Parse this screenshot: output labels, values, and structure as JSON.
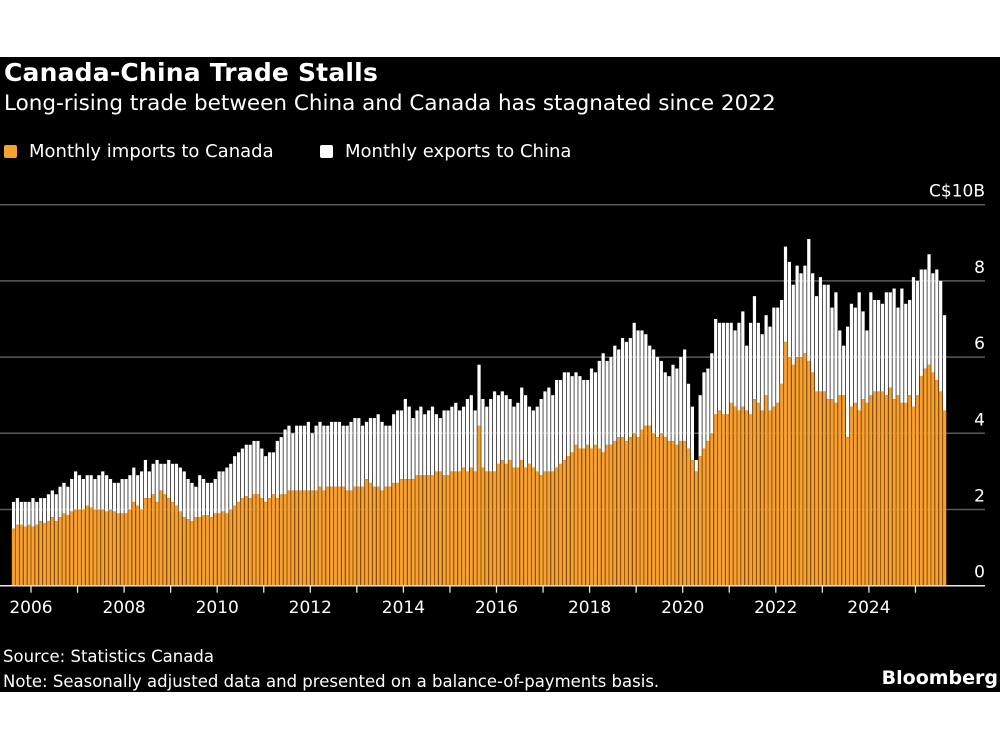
{
  "header": {
    "title": "Canada-China Trade Stalls",
    "subtitle": "Long-rising trade between China and Canada has stagnated since 2022"
  },
  "footer": {
    "source": "Source: Statistics Canada",
    "note": "Note: Seasonally adjusted data and presented on a balance-of-payments basis.",
    "brand": "Bloomberg"
  },
  "chart_data": {
    "type": "bar",
    "stacked": true,
    "title": "Canada-China Trade Stalls",
    "subtitle": "Long-rising trade between China and Canada has stagnated since 2022",
    "x_start": "2005-08",
    "x_end": "2025-08",
    "frequency": "monthly",
    "unit": "C$B",
    "ylim": [
      0,
      10
    ],
    "y_ticks": [
      0,
      2,
      4,
      6,
      8,
      10
    ],
    "y_tick_labels": [
      "0",
      "2",
      "4",
      "6",
      "8",
      "C$10B"
    ],
    "x_tick_labels": [
      "2006",
      "2008",
      "2010",
      "2012",
      "2014",
      "2016",
      "2018",
      "2020",
      "2022",
      "2024"
    ],
    "y_axis_side": "right",
    "grid": true,
    "legend_position": "top-left",
    "series": [
      {
        "name": "Monthly imports to Canada",
        "color": "#f7a133",
        "values": [
          1.5,
          1.6,
          1.6,
          1.55,
          1.6,
          1.55,
          1.6,
          1.7,
          1.65,
          1.7,
          1.8,
          1.7,
          1.8,
          1.9,
          1.85,
          1.95,
          2.0,
          2.0,
          2.0,
          2.1,
          2.05,
          2.0,
          2.0,
          2.0,
          1.95,
          2.0,
          1.95,
          1.9,
          1.9,
          1.9,
          2.0,
          2.2,
          2.1,
          2.0,
          2.3,
          2.3,
          2.4,
          2.2,
          2.5,
          2.4,
          2.3,
          2.2,
          2.1,
          1.95,
          1.8,
          1.75,
          1.7,
          1.8,
          1.8,
          1.85,
          1.85,
          1.8,
          1.9,
          1.9,
          1.95,
          1.9,
          2.0,
          2.1,
          2.2,
          2.3,
          2.35,
          2.3,
          2.4,
          2.4,
          2.3,
          2.2,
          2.3,
          2.4,
          2.3,
          2.4,
          2.4,
          2.5,
          2.5,
          2.5,
          2.5,
          2.5,
          2.5,
          2.5,
          2.5,
          2.6,
          2.5,
          2.6,
          2.6,
          2.6,
          2.6,
          2.6,
          2.5,
          2.5,
          2.6,
          2.6,
          2.6,
          2.8,
          2.7,
          2.6,
          2.6,
          2.5,
          2.6,
          2.6,
          2.7,
          2.7,
          2.8,
          2.8,
          2.8,
          2.8,
          2.9,
          2.9,
          2.9,
          2.9,
          2.9,
          3.0,
          3.0,
          2.9,
          2.9,
          3.0,
          3.0,
          3.0,
          3.1,
          3.0,
          3.1,
          3.0,
          4.2,
          3.1,
          3.0,
          3.0,
          3.0,
          3.2,
          3.3,
          3.2,
          3.3,
          3.1,
          3.1,
          3.3,
          3.1,
          3.2,
          3.1,
          3.0,
          2.9,
          3.0,
          3.0,
          3.0,
          3.1,
          3.2,
          3.3,
          3.4,
          3.5,
          3.7,
          3.6,
          3.6,
          3.7,
          3.6,
          3.7,
          3.6,
          3.5,
          3.7,
          3.7,
          3.8,
          3.9,
          3.9,
          3.8,
          3.9,
          4.0,
          3.9,
          4.1,
          4.2,
          4.2,
          4.0,
          3.9,
          4.0,
          3.9,
          3.8,
          3.8,
          3.7,
          3.8,
          3.8,
          3.6,
          3.3,
          3.0,
          3.4,
          3.6,
          3.8,
          4.0,
          4.5,
          4.6,
          4.5,
          4.5,
          4.8,
          4.7,
          4.6,
          4.7,
          4.6,
          4.5,
          4.9,
          4.8,
          4.6,
          5.0,
          4.6,
          4.7,
          4.8,
          5.3,
          6.4,
          6.0,
          5.8,
          6.0,
          6.0,
          6.1,
          5.9,
          5.6,
          5.1,
          5.1,
          5.1,
          4.9,
          4.9,
          4.8,
          5.0,
          5.0,
          3.9,
          4.7,
          4.8,
          4.6,
          4.9,
          4.8,
          5.0,
          5.1,
          5.1,
          5.1,
          5.0,
          5.2,
          4.9,
          5.0,
          4.8,
          4.8,
          5.0,
          4.7,
          5.0,
          5.5,
          5.7,
          5.8,
          5.6,
          5.4,
          5.1,
          4.6
        ]
      },
      {
        "name": "Monthly exports to China",
        "color": "#ffffff",
        "values": [
          0.7,
          0.7,
          0.6,
          0.65,
          0.6,
          0.75,
          0.6,
          0.6,
          0.65,
          0.7,
          0.7,
          0.7,
          0.8,
          0.8,
          0.75,
          0.85,
          1.0,
          0.9,
          0.8,
          0.8,
          0.85,
          0.8,
          0.9,
          1.0,
          0.95,
          0.8,
          0.75,
          0.8,
          0.9,
          0.9,
          0.9,
          0.9,
          0.8,
          1.0,
          1.0,
          0.7,
          0.8,
          1.1,
          0.7,
          0.8,
          1.0,
          1.0,
          1.1,
          1.15,
          1.2,
          1.05,
          1.0,
          0.8,
          1.1,
          0.95,
          0.85,
          0.9,
          0.9,
          1.1,
          1.05,
          1.2,
          1.2,
          1.3,
          1.3,
          1.3,
          1.35,
          1.4,
          1.4,
          1.4,
          1.3,
          1.2,
          1.2,
          1.1,
          1.5,
          1.5,
          1.7,
          1.7,
          1.5,
          1.7,
          1.7,
          1.7,
          1.8,
          1.5,
          1.7,
          1.7,
          1.7,
          1.6,
          1.7,
          1.7,
          1.7,
          1.6,
          1.7,
          1.8,
          1.8,
          1.8,
          1.6,
          1.5,
          1.7,
          1.8,
          1.9,
          1.8,
          1.6,
          1.6,
          1.8,
          1.9,
          1.8,
          2.1,
          1.9,
          1.6,
          1.7,
          1.8,
          1.6,
          1.7,
          1.8,
          1.5,
          1.4,
          1.7,
          1.7,
          1.7,
          1.8,
          1.6,
          1.6,
          1.9,
          1.9,
          1.6,
          1.6,
          1.8,
          1.7,
          1.9,
          2.1,
          1.8,
          1.8,
          1.8,
          1.6,
          1.6,
          1.7,
          1.9,
          1.9,
          1.5,
          1.5,
          1.7,
          2.0,
          2.1,
          2.2,
          2.0,
          2.3,
          2.2,
          2.3,
          2.2,
          2.0,
          1.9,
          1.9,
          1.8,
          1.7,
          2.1,
          1.9,
          2.3,
          2.6,
          2.2,
          2.3,
          2.5,
          2.3,
          2.6,
          2.6,
          2.6,
          2.9,
          2.8,
          2.6,
          2.4,
          2.1,
          2.2,
          2.1,
          1.9,
          1.7,
          1.7,
          2.0,
          2.0,
          2.2,
          2.4,
          1.7,
          1.4,
          0.3,
          1.6,
          2.0,
          1.9,
          2.1,
          2.5,
          2.3,
          2.4,
          2.4,
          2.1,
          2.0,
          2.3,
          2.5,
          1.7,
          2.4,
          2.7,
          2.1,
          2.0,
          2.1,
          2.2,
          2.6,
          2.5,
          2.2,
          2.5,
          2.5,
          2.1,
          2.4,
          2.2,
          2.3,
          3.2,
          2.6,
          2.5,
          3.0,
          2.8,
          3.0,
          2.4,
          2.9,
          1.7,
          1.3,
          2.9,
          2.7,
          2.5,
          3.1,
          2.3,
          1.9,
          2.7,
          2.4,
          2.4,
          2.3,
          2.7,
          2.5,
          2.9,
          2.3,
          3.0,
          2.6,
          2.5,
          3.4,
          3.0,
          2.8,
          2.6,
          2.9,
          2.6,
          2.9,
          2.9,
          2.5
        ]
      }
    ]
  }
}
